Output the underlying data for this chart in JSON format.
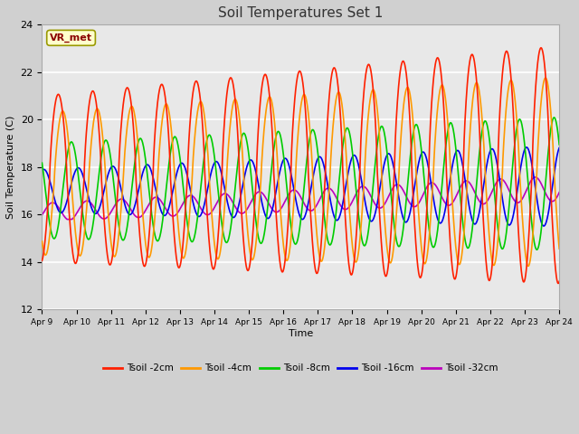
{
  "title": "Soil Temperatures Set 1",
  "xlabel": "Time",
  "ylabel": "Soil Temperature (C)",
  "ylim": [
    12,
    24
  ],
  "xlim": [
    0,
    15
  ],
  "fig_bg": "#d0d0d0",
  "plot_bg": "#e8e8e8",
  "annotation_text": "VR_met",
  "annotation_bg": "#ffffcc",
  "annotation_edge": "#999900",
  "annotation_text_color": "#8B0000",
  "xtick_labels": [
    "Apr 9",
    "Apr 10",
    "Apr 11",
    "Apr 12",
    "Apr 13",
    "Apr 14",
    "Apr 15",
    "Apr 16",
    "Apr 17",
    "Apr 18",
    "Apr 19",
    "Apr 20",
    "Apr 21",
    "Apr 22",
    "Apr 23",
    "Apr 24"
  ],
  "ytick_labels": [
    12,
    14,
    16,
    18,
    20,
    22,
    24
  ],
  "series": {
    "Tsoil -2cm": {
      "color": "#ff2000",
      "lw": 1.2
    },
    "Tsoil -4cm": {
      "color": "#ff9900",
      "lw": 1.2
    },
    "Tsoil -8cm": {
      "color": "#00cc00",
      "lw": 1.2
    },
    "Tsoil -16cm": {
      "color": "#0000ee",
      "lw": 1.2
    },
    "Tsoil -32cm": {
      "color": "#bb00bb",
      "lw": 1.2
    }
  }
}
